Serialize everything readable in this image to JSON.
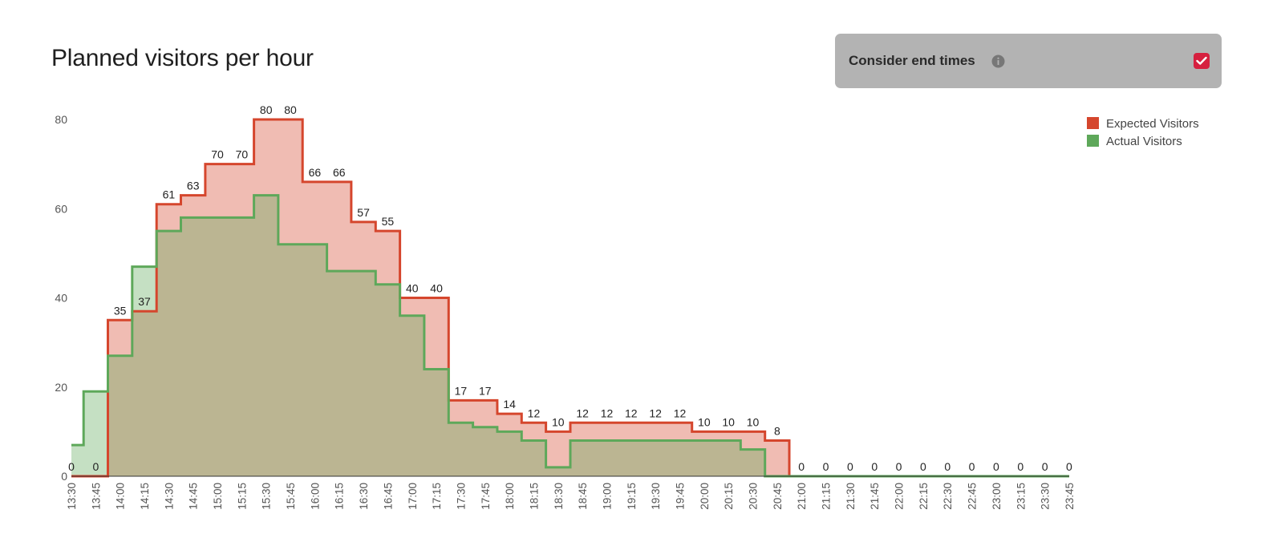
{
  "page": {
    "title": "Planned visitors per hour"
  },
  "toggle": {
    "label": "Consider end times",
    "checked": true,
    "info_icon": "info-icon",
    "check_color": "#d6203f"
  },
  "chart_data": {
    "type": "area",
    "step": true,
    "title": "",
    "xlabel": "",
    "ylabel": "",
    "ylim": [
      0,
      80
    ],
    "yticks": [
      0,
      20,
      40,
      60,
      80
    ],
    "grid": false,
    "legend_position": "top-right",
    "categories": [
      "13:30",
      "13:45",
      "14:00",
      "14:15",
      "14:30",
      "14:45",
      "15:00",
      "15:15",
      "15:30",
      "15:45",
      "16:00",
      "16:15",
      "16:30",
      "16:45",
      "17:00",
      "17:15",
      "17:30",
      "17:45",
      "18:00",
      "18:15",
      "18:30",
      "18:45",
      "19:00",
      "19:15",
      "19:30",
      "19:45",
      "20:00",
      "20:15",
      "20:30",
      "20:45",
      "21:00",
      "21:15",
      "21:30",
      "21:45",
      "22:00",
      "22:15",
      "22:30",
      "22:45",
      "23:00",
      "23:15",
      "23:30",
      "23:45"
    ],
    "series": [
      {
        "name": "Expected Visitors",
        "color": "#d5462d",
        "fill": "#e8b5a9",
        "values": [
          0,
          0,
          35,
          37,
          61,
          63,
          70,
          70,
          80,
          80,
          66,
          66,
          57,
          55,
          40,
          40,
          17,
          17,
          14,
          12,
          10,
          12,
          12,
          12,
          12,
          12,
          10,
          10,
          10,
          8,
          0,
          0,
          0,
          0,
          0,
          0,
          0,
          0,
          0,
          0,
          0,
          0
        ]
      },
      {
        "name": "Actual Visitors",
        "color": "#5ea85a",
        "fill": "#c2dfbd",
        "values": [
          7,
          19,
          27,
          47,
          55,
          58,
          58,
          58,
          63,
          52,
          52,
          46,
          46,
          43,
          36,
          24,
          12,
          11,
          10,
          8,
          2,
          8,
          8,
          8,
          8,
          8,
          8,
          8,
          6,
          0,
          0,
          0,
          0,
          0,
          0,
          0,
          0,
          0,
          0,
          0,
          0,
          0
        ]
      }
    ],
    "data_labels": [
      "0",
      "0",
      "35",
      "37",
      "61",
      "63",
      "70",
      "70",
      "80",
      "80",
      "66",
      "66",
      "57",
      "55",
      "40",
      "40",
      "17",
      "17",
      "14",
      "12",
      "10",
      "12",
      "12",
      "12",
      "12",
      "12",
      "10",
      "10",
      "10",
      "8",
      "0",
      "0",
      "0",
      "0",
      "0",
      "0",
      "0",
      "0",
      "0",
      "0",
      "0",
      "0"
    ]
  }
}
